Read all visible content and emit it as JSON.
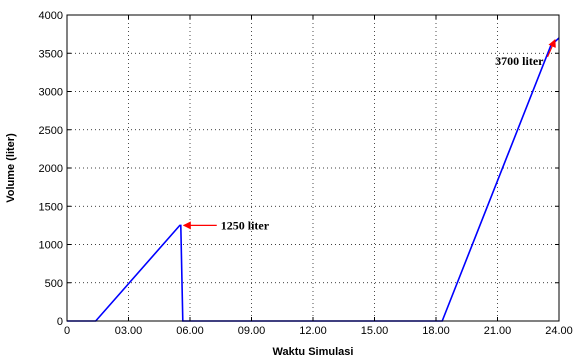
{
  "chart_data": {
    "type": "line",
    "title": "",
    "xlabel": "Waktu Simulasi",
    "ylabel": "Volume (liter)",
    "xlim": [
      0,
      24
    ],
    "ylim": [
      0,
      4000
    ],
    "grid": true,
    "line_color": "#0000ff",
    "annotation_color": "#ff0000",
    "x_ticks": [
      {
        "value": 0,
        "label": "0"
      },
      {
        "value": 3,
        "label": "03.00"
      },
      {
        "value": 6,
        "label": "06.00"
      },
      {
        "value": 9,
        "label": "09.00"
      },
      {
        "value": 12,
        "label": "12.00"
      },
      {
        "value": 15,
        "label": "15.00"
      },
      {
        "value": 18,
        "label": "18.00"
      },
      {
        "value": 21,
        "label": "21.00"
      },
      {
        "value": 24,
        "label": "24.00"
      }
    ],
    "y_ticks": [
      {
        "value": 0,
        "label": "0"
      },
      {
        "value": 500,
        "label": "500"
      },
      {
        "value": 1000,
        "label": "1000"
      },
      {
        "value": 1500,
        "label": "1500"
      },
      {
        "value": 2000,
        "label": "2000"
      },
      {
        "value": 2500,
        "label": "2500"
      },
      {
        "value": 3000,
        "label": "3000"
      },
      {
        "value": 3500,
        "label": "3500"
      },
      {
        "value": 4000,
        "label": "4000"
      }
    ],
    "series": [
      {
        "x": [
          0,
          1.4,
          5.5,
          5.55,
          5.65,
          5.7,
          18.3,
          23.6,
          24
        ],
        "y": [
          0,
          0,
          1250,
          1250,
          0,
          0,
          0,
          3600,
          3700
        ]
      }
    ],
    "annotations": [
      {
        "text": "1250 liter",
        "point": [
          5.6,
          1250
        ],
        "text_anchor": [
          7.5,
          1250
        ]
      },
      {
        "text": "3700 liter",
        "point": [
          23.9,
          3700
        ],
        "text_anchor": [
          21.0,
          3400
        ]
      }
    ]
  }
}
